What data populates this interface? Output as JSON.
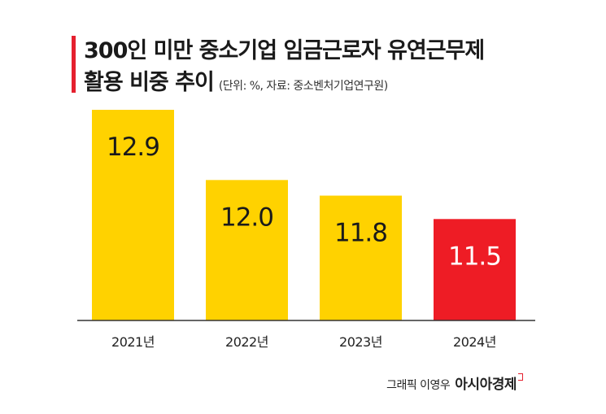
{
  "title": {
    "line1": "300인 미만 중소기업 임금근로자 유연근무제",
    "line2": "활용 비중 추이",
    "note": "(단위: %, 자료: 중소벤처기업연구원)"
  },
  "colors": {
    "normal_bar": "#ffd200",
    "highlight_bar": "#ee1c25",
    "accent": "#e5202e"
  },
  "chart_data": {
    "type": "bar",
    "categories": [
      "2021년",
      "2022년",
      "2023년",
      "2024년"
    ],
    "values": [
      12.9,
      12.0,
      11.8,
      11.5
    ],
    "value_labels": [
      "12.9",
      "12.0",
      "11.8",
      "11.5"
    ],
    "highlight_index": 3,
    "unit": "%",
    "ylim": [
      10.2,
      12.9
    ],
    "grid": false,
    "legend": "none"
  },
  "credit": {
    "author": "그래픽 이영우",
    "brand": "아시아경제"
  }
}
